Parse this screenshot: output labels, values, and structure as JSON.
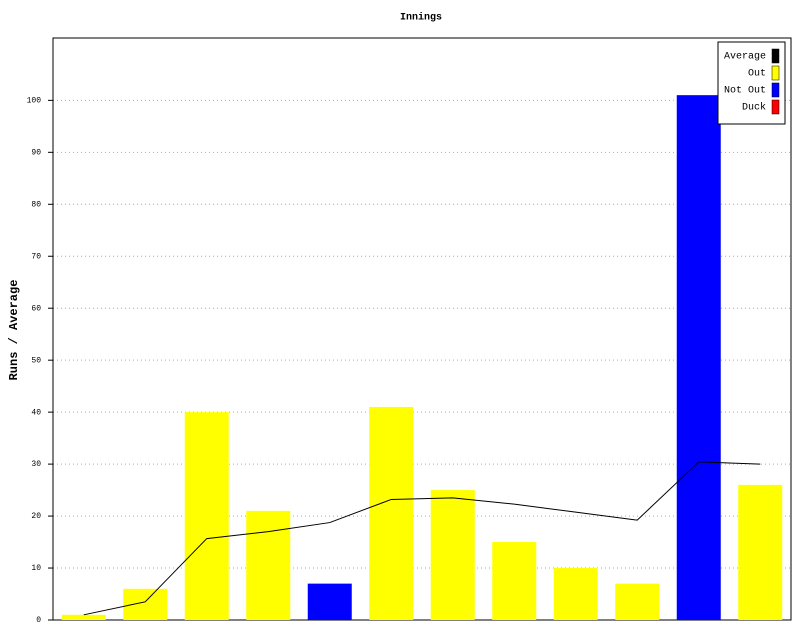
{
  "chart_data": {
    "type": "bar",
    "title": "Innings",
    "y_label": "Runs / Average",
    "categories": [
      null,
      null,
      null,
      null,
      null,
      null,
      null,
      null,
      null,
      null,
      null,
      null
    ],
    "series": [
      {
        "name": "Average",
        "type": "line",
        "color": "#000000",
        "values": [
          1,
          3.5,
          15.67,
          17,
          18.75,
          23.2,
          23.5,
          22.29,
          20.75,
          19.22,
          30.44,
          30
        ]
      },
      {
        "name": "Out",
        "type": "bar",
        "color": "#ffff00",
        "values": [
          1,
          6,
          40,
          21,
          null,
          41,
          25,
          15,
          10,
          7,
          null,
          26
        ]
      },
      {
        "name": "Not Out",
        "type": "bar",
        "color": "#0000ff",
        "values": [
          null,
          null,
          null,
          null,
          7,
          null,
          null,
          null,
          null,
          null,
          101,
          null
        ]
      },
      {
        "name": "Duck",
        "type": "bar",
        "color": "#ff0000",
        "values": [
          null,
          null,
          null,
          null,
          null,
          null,
          null,
          null,
          null,
          null,
          null,
          null
        ]
      }
    ],
    "ylim": [
      0,
      112
    ],
    "yticks": [
      0,
      10,
      20,
      30,
      40,
      50,
      60,
      70,
      80,
      90,
      100
    ],
    "grid": true,
    "legend": "top-right"
  }
}
